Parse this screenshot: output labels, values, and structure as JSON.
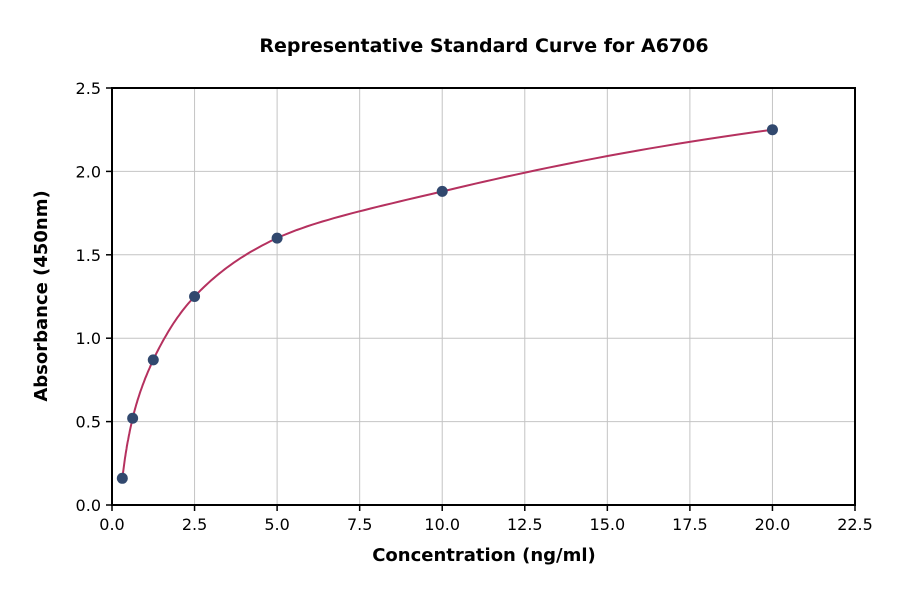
{
  "chart_data": {
    "type": "scatter",
    "title": "Representative Standard Curve for A6706",
    "xlabel": "Concentration (ng/ml)",
    "ylabel": "Absorbance (450nm)",
    "xlim": [
      0,
      22.5
    ],
    "ylim": [
      0,
      2.5
    ],
    "xticks": [
      0.0,
      2.5,
      5.0,
      7.5,
      10.0,
      12.5,
      15.0,
      17.5,
      20.0,
      22.5
    ],
    "xtick_labels": [
      "0.0",
      "2.5",
      "5.0",
      "7.5",
      "10.0",
      "12.5",
      "15.0",
      "17.5",
      "20.0",
      "22.5"
    ],
    "yticks": [
      0.0,
      0.5,
      1.0,
      1.5,
      2.0,
      2.5
    ],
    "ytick_labels": [
      "0.0",
      "0.5",
      "1.0",
      "1.5",
      "2.0",
      "2.5"
    ],
    "grid": true,
    "legend": "none",
    "series": [
      {
        "name": "standard-curve-points",
        "x": [
          0.3125,
          0.625,
          1.25,
          2.5,
          5.0,
          10.0,
          20.0
        ],
        "y": [
          0.16,
          0.52,
          0.87,
          1.25,
          1.6,
          1.88,
          2.25
        ]
      }
    ],
    "fit_curve": "smooth interpolation through points (log-dose response fit)",
    "colors": {
      "curve": "#b5315f",
      "points": "#31486e",
      "grid": "#c4c4c4",
      "spine": "#000000",
      "background": "#ffffff"
    }
  }
}
